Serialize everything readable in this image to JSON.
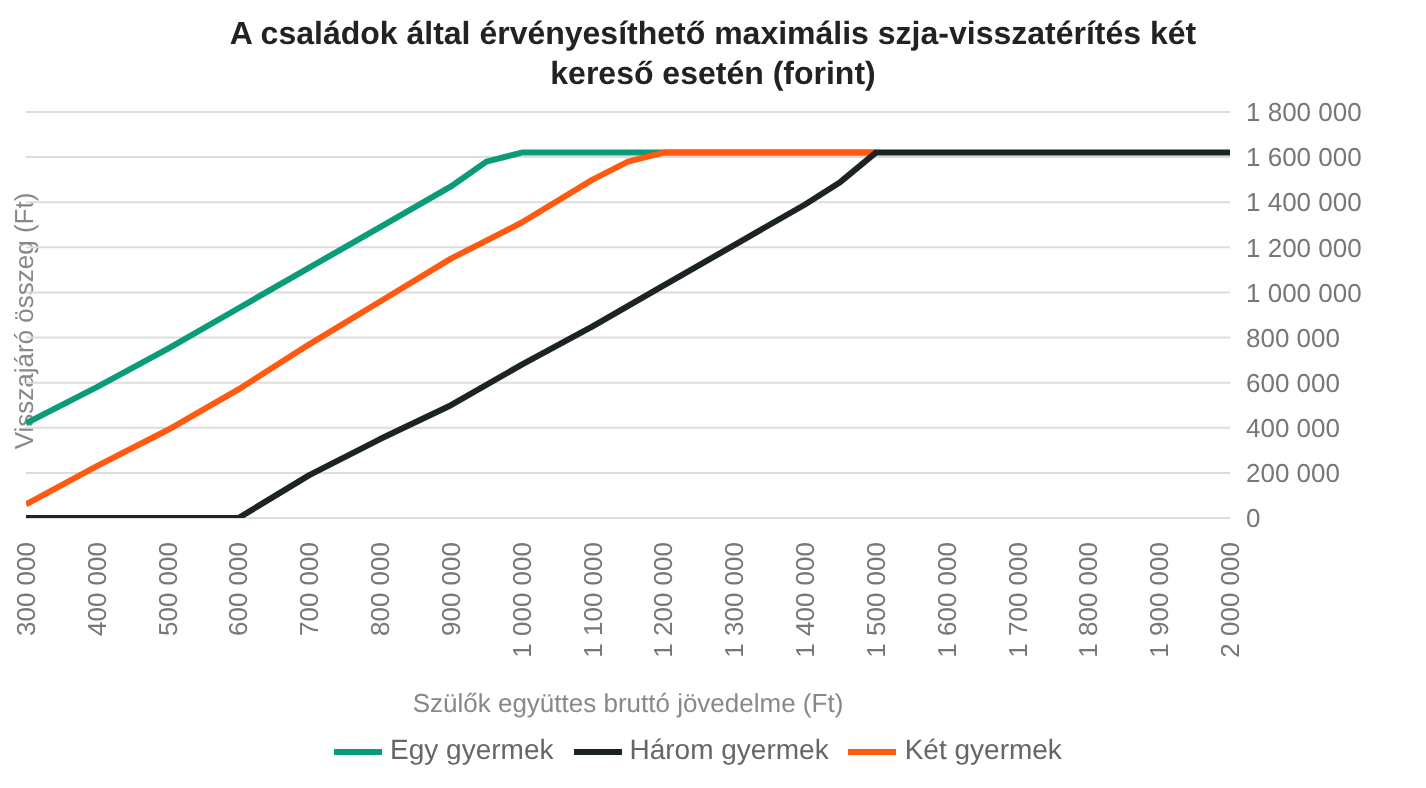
{
  "chart_data": {
    "type": "line",
    "title": "A családok által érvényesíthető maximális szja-visszatérítés két kereső esetén (forint)",
    "xlabel": "Szülők együttes bruttó jövedelme (Ft)",
    "ylabel": "Visszajáró összeg (Ft)",
    "series": [
      {
        "name": "Egy gyermek",
        "color": "#0a9c78",
        "x": [
          300000,
          400000,
          500000,
          600000,
          700000,
          800000,
          900000,
          950000,
          1000000,
          1200000,
          1500000
        ],
        "values": [
          420000,
          580000,
          750000,
          930000,
          1110000,
          1290000,
          1470000,
          1580000,
          1620000,
          1620000,
          1620000
        ]
      },
      {
        "name": "Két gyermek",
        "color": "#ff5a0f",
        "x": [
          300000,
          400000,
          500000,
          600000,
          700000,
          800000,
          900000,
          1000000,
          1100000,
          1150000,
          1200000,
          1500000
        ],
        "values": [
          60000,
          230000,
          390000,
          570000,
          770000,
          960000,
          1150000,
          1310000,
          1500000,
          1580000,
          1620000,
          1620000
        ]
      },
      {
        "name": "Három gyermek",
        "color": "#1c2323",
        "x": [
          300000,
          600000,
          700000,
          800000,
          900000,
          1000000,
          1100000,
          1200000,
          1300000,
          1400000,
          1450000,
          1500000,
          2000000
        ],
        "values": [
          0,
          0,
          190000,
          350000,
          500000,
          680000,
          850000,
          1030000,
          1210000,
          1390000,
          1490000,
          1620000,
          1620000
        ]
      }
    ],
    "xlim": [
      300000,
      2000000
    ],
    "xticks": [
      {
        "value": 300000,
        "label": "300 000"
      },
      {
        "value": 400000,
        "label": "400 000"
      },
      {
        "value": 500000,
        "label": "500 000"
      },
      {
        "value": 600000,
        "label": "600 000"
      },
      {
        "value": 700000,
        "label": "700 000"
      },
      {
        "value": 800000,
        "label": "800 000"
      },
      {
        "value": 900000,
        "label": "900 000"
      },
      {
        "value": 1000000,
        "label": "1 000 000"
      },
      {
        "value": 1100000,
        "label": "1 100 000"
      },
      {
        "value": 1200000,
        "label": "1 200 000"
      },
      {
        "value": 1300000,
        "label": "1 300 000"
      },
      {
        "value": 1400000,
        "label": "1 400 000"
      },
      {
        "value": 1500000,
        "label": "1 500 000"
      },
      {
        "value": 1600000,
        "label": "1 600 000"
      },
      {
        "value": 1700000,
        "label": "1 700 000"
      },
      {
        "value": 1800000,
        "label": "1 800 000"
      },
      {
        "value": 1900000,
        "label": "1 900 000"
      },
      {
        "value": 2000000,
        "label": "2 000 000"
      }
    ],
    "ylim": [
      0,
      1800000
    ],
    "yticks": [
      0,
      {
        "value": 200000,
        "label": "200 000"
      },
      {
        "value": 400000,
        "label": "400 000"
      },
      {
        "value": 600000,
        "label": "600 000"
      },
      {
        "value": 800000,
        "label": "800 000"
      },
      {
        "value": 1000000,
        "label": "1 000 000"
      },
      {
        "value": 1200000,
        "label": "1 200 000"
      },
      {
        "value": 1400000,
        "label": "1 400 000"
      },
      {
        "value": 1600000,
        "label": "1 600 000"
      },
      {
        "value": 1800000,
        "label": "1 800 000"
      }
    ],
    "grid": "y",
    "legend": "bottom",
    "marker": "none",
    "line_style": "solid"
  }
}
